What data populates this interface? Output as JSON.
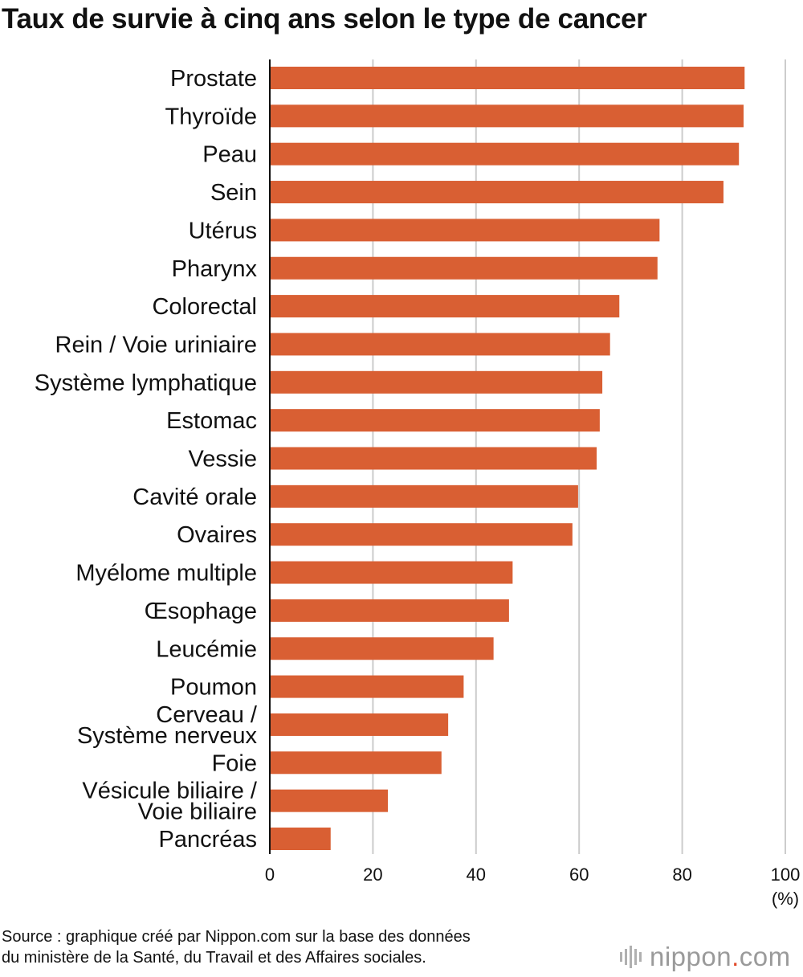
{
  "title": "Taux de survie à cinq ans selon le type de cancer",
  "source": [
    "Source : graphique créé par Nippon.com sur la base des données",
    "du ministère de la Santé, du Travail et des Affaires sociales."
  ],
  "logo": {
    "name": "nippon",
    "dot": ".",
    "suffix": "com",
    "icon": "sound-bars-icon"
  },
  "colors": {
    "bar": "#d95f33",
    "grid": "#cccccc",
    "axis": "#111111",
    "logo_dot": "#e04a2a"
  },
  "chart_data": {
    "type": "bar",
    "orientation": "horizontal",
    "categories": [
      [
        "Prostate"
      ],
      [
        "Thyroïde"
      ],
      [
        "Peau"
      ],
      [
        "Sein"
      ],
      [
        "Utérus"
      ],
      [
        "Pharynx"
      ],
      [
        "Colorectal"
      ],
      [
        "Rein / Voie uriniaire"
      ],
      [
        "Système lymphatique"
      ],
      [
        "Estomac"
      ],
      [
        "Vessie"
      ],
      [
        "Cavité orale"
      ],
      [
        "Ovaires"
      ],
      [
        "Myélome multiple"
      ],
      [
        "Œsophage"
      ],
      [
        "Leucémie"
      ],
      [
        "Poumon"
      ],
      [
        "Cerveau /",
        "Système nerveux"
      ],
      [
        "Foie"
      ],
      [
        "Vésicule biliaire /",
        "Voie biliaire"
      ],
      [
        "Pancréas"
      ]
    ],
    "values": [
      92.1,
      91.9,
      91.0,
      88.0,
      75.6,
      75.2,
      67.8,
      66.0,
      64.5,
      64.0,
      63.4,
      59.8,
      58.7,
      47.1,
      46.4,
      43.4,
      37.6,
      34.6,
      33.3,
      22.9,
      11.8
    ],
    "xticks": [
      "0",
      "20",
      "40",
      "60",
      "80",
      "100"
    ],
    "xunit": "(%)",
    "xlim": [
      0,
      100
    ],
    "grid": true
  }
}
